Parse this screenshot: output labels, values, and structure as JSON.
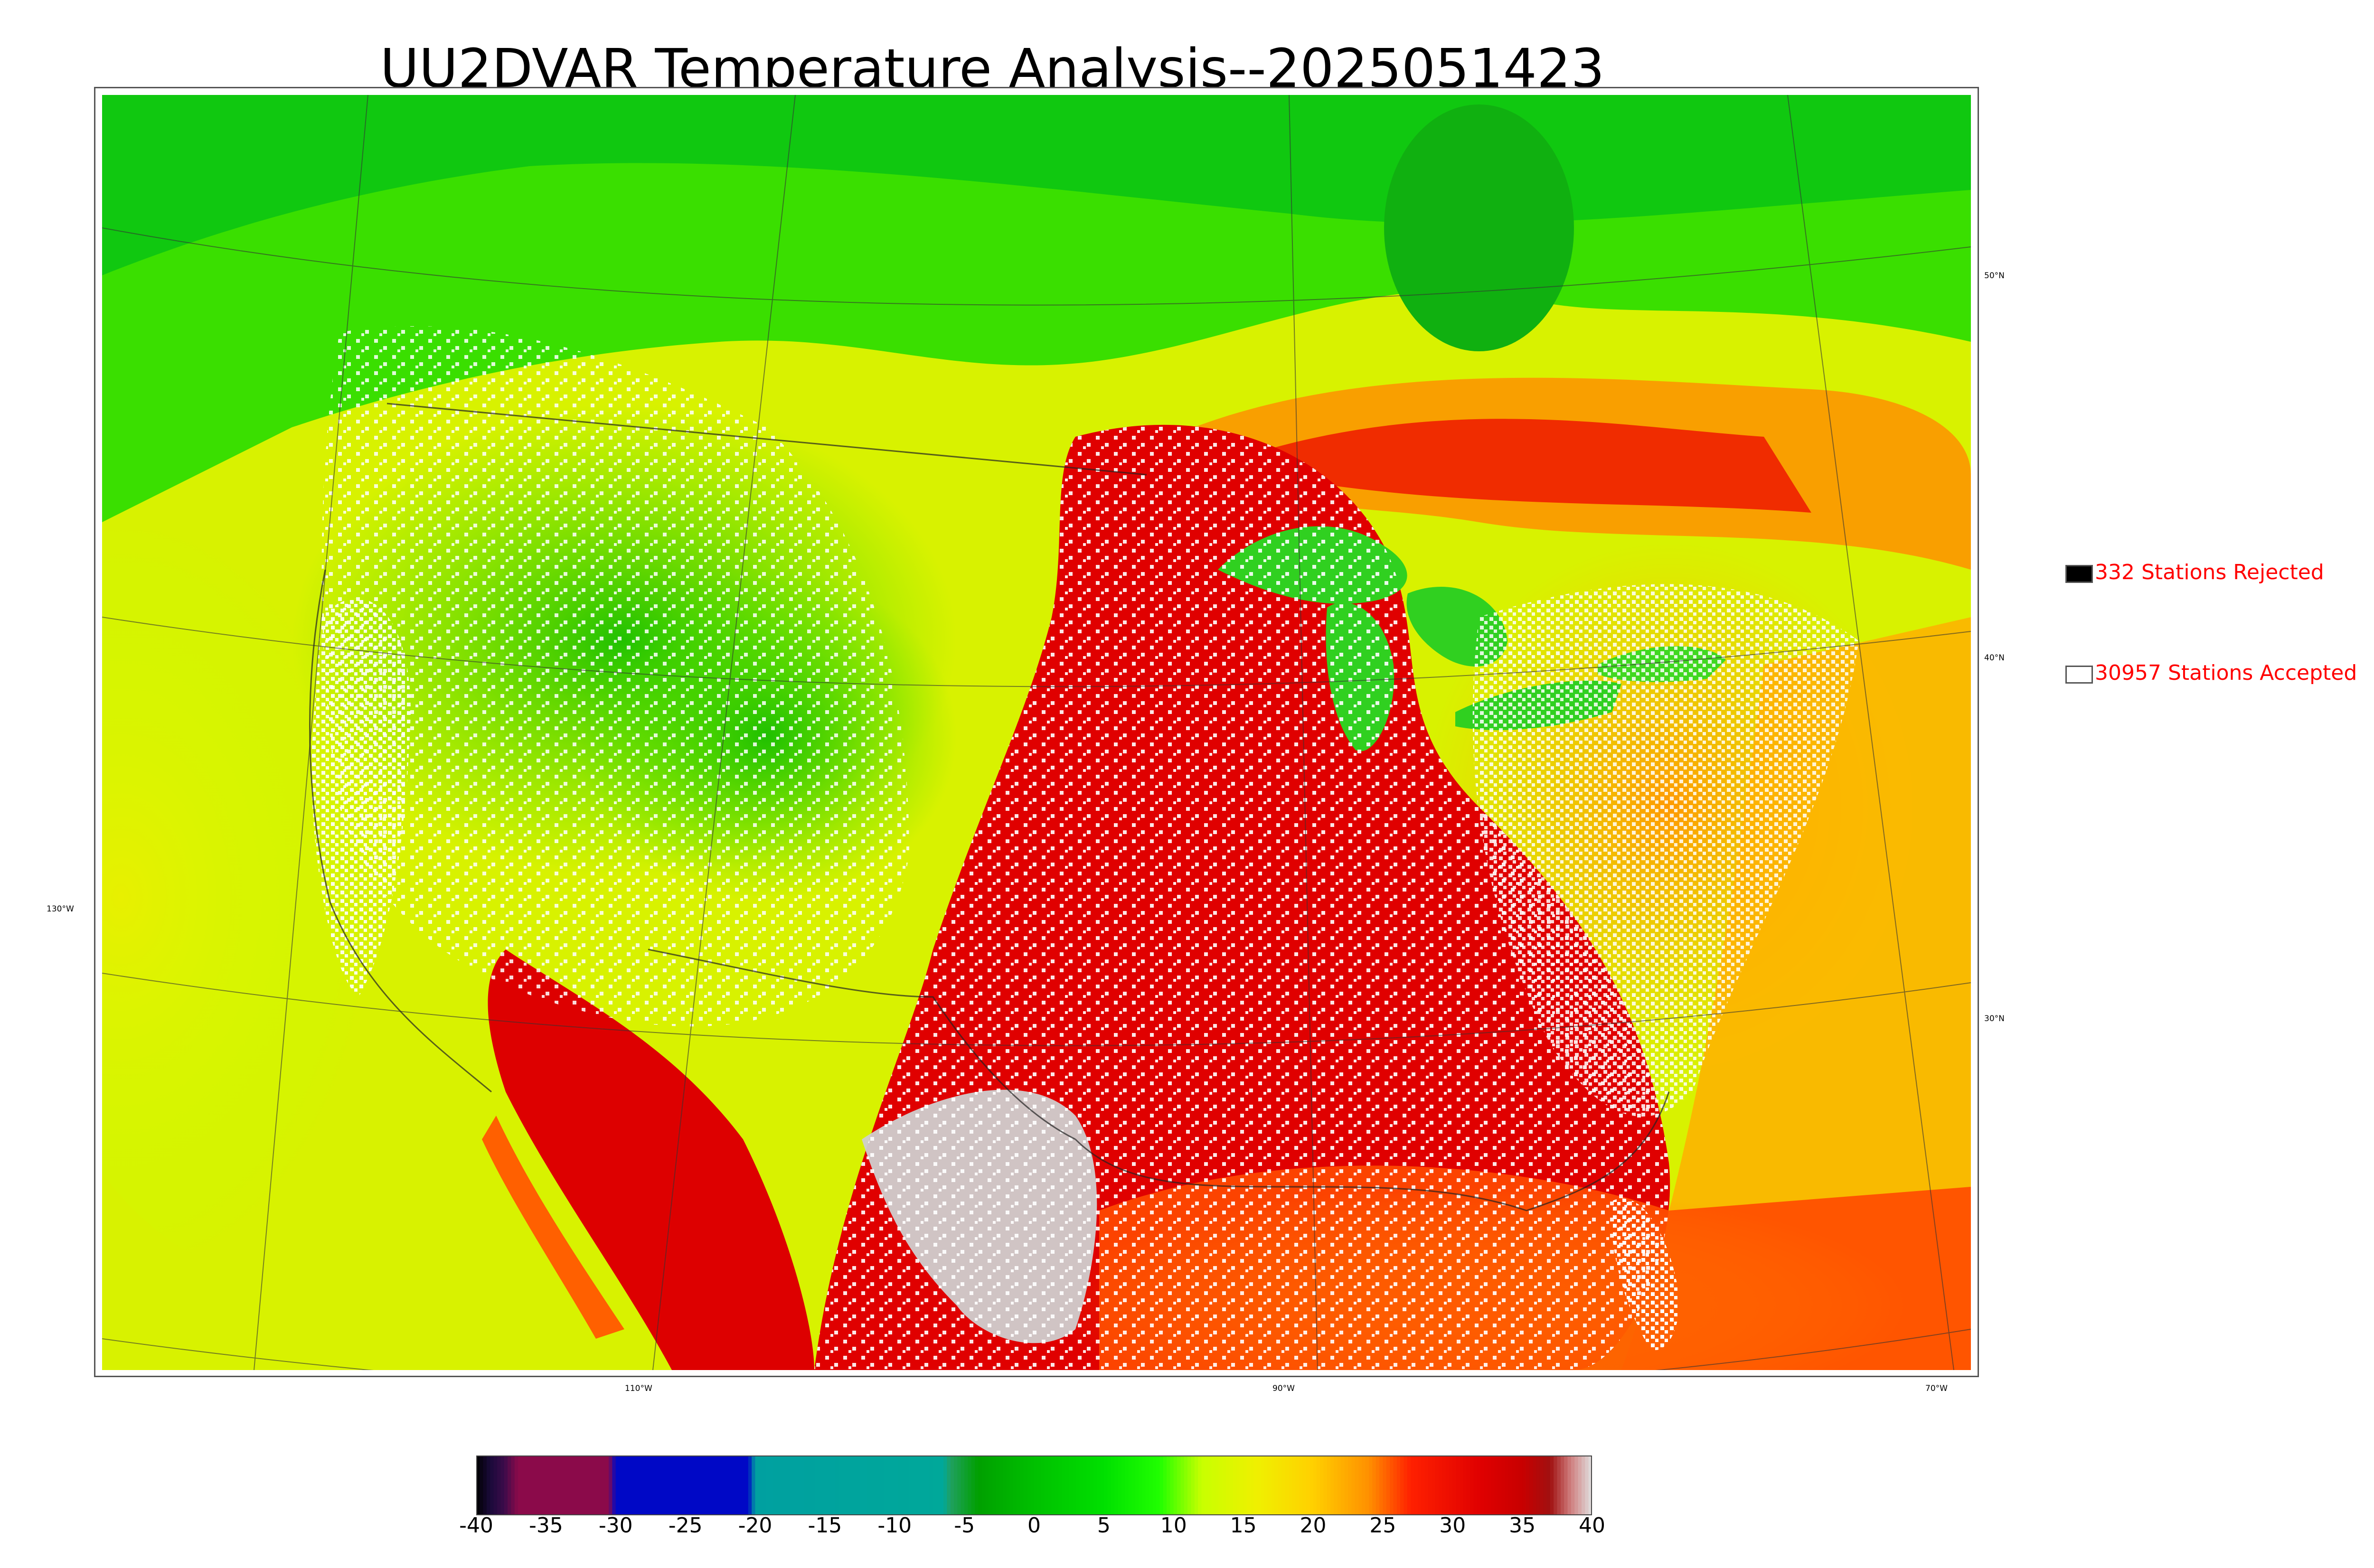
{
  "title": "UU2DVAR Temperature Analysis--2025051423",
  "legend": {
    "rejected": {
      "label": "332 Stations Rejected",
      "color": "#000000"
    },
    "accepted": {
      "label": "30957 Stations Accepted",
      "color": "#ffffff"
    }
  },
  "graticule_labels": {
    "lat_50": "50°N",
    "lat_40": "40°N",
    "lat_30": "30°N",
    "lon_130": "130°W",
    "lon_110": "110°W",
    "lon_90": "90°W",
    "lon_70": "70°W"
  },
  "colorbar": {
    "min": -40,
    "max": 40,
    "ticks": [
      "-40",
      "-35",
      "-30",
      "-25",
      "-20",
      "-15",
      "-10",
      "-5",
      "0",
      "5",
      "10",
      "15",
      "20",
      "25",
      "30",
      "35",
      "40"
    ],
    "stops": [
      {
        "value": -40,
        "color": "#000000"
      },
      {
        "value": -39,
        "color": "#1a0a3a"
      },
      {
        "value": -38,
        "color": "#3b0b4a"
      },
      {
        "value": -37,
        "color": "#8b0a4a"
      },
      {
        "value": -30.5,
        "color": "#8b0a4a"
      },
      {
        "value": -30,
        "color": "#0008c6"
      },
      {
        "value": -20.5,
        "color": "#0008c6"
      },
      {
        "value": -20,
        "color": "#00a0a0"
      },
      {
        "value": -6.5,
        "color": "#00a89a"
      },
      {
        "value": -6,
        "color": "#20a060"
      },
      {
        "value": -4,
        "color": "#00a000"
      },
      {
        "value": 0,
        "color": "#00c000"
      },
      {
        "value": 5,
        "color": "#00e000"
      },
      {
        "value": 9,
        "color": "#20ff00"
      },
      {
        "value": 12,
        "color": "#c8ff00"
      },
      {
        "value": 16,
        "color": "#f0f000"
      },
      {
        "value": 20,
        "color": "#ffd000"
      },
      {
        "value": 24,
        "color": "#ff9000"
      },
      {
        "value": 27,
        "color": "#ff2000"
      },
      {
        "value": 32,
        "color": "#e00000"
      },
      {
        "value": 35,
        "color": "#c80000"
      },
      {
        "value": 37,
        "color": "#a01010"
      },
      {
        "value": 38.5,
        "color": "#d08080"
      },
      {
        "value": 40,
        "color": "#e0e0e0"
      }
    ]
  }
}
